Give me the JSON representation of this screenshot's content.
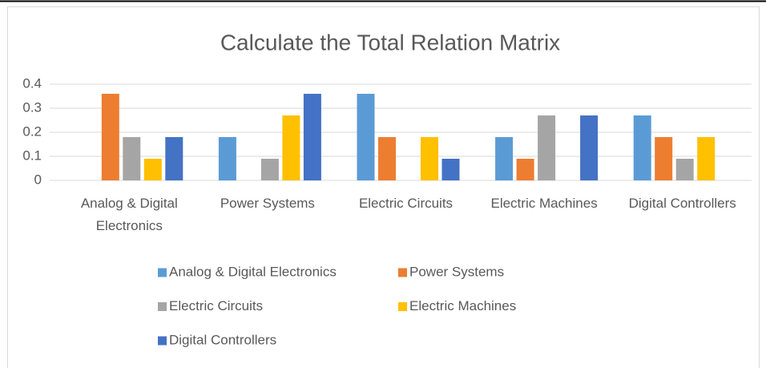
{
  "chart_data": {
    "type": "bar",
    "title": "Calculate the Total Relation Matrix",
    "categories": [
      "Analog & Digital Electronics",
      "Power Systems",
      "Electric Circuits",
      "Electric Machines",
      "Digital Controllers"
    ],
    "series": [
      {
        "name": "Analog & Digital Electronics",
        "color": "#5b9bd5",
        "values": [
          0,
          0.18,
          0.36,
          0.18,
          0.27
        ]
      },
      {
        "name": "Power Systems",
        "color": "#ed7d31",
        "values": [
          0.36,
          0,
          0.18,
          0.09,
          0.18
        ]
      },
      {
        "name": "Electric Circuits",
        "color": "#a5a5a5",
        "values": [
          0.18,
          0.09,
          0,
          0.27,
          0.09
        ]
      },
      {
        "name": "Electric Machines",
        "color": "#ffc000",
        "values": [
          0.09,
          0.27,
          0.18,
          0,
          0.18
        ]
      },
      {
        "name": "Digital Controllers",
        "color": "#4472c4",
        "values": [
          0.18,
          0.36,
          0.09,
          0.27,
          0
        ]
      }
    ],
    "ylim": [
      0,
      0.4
    ],
    "yticks": [
      0,
      0.1,
      0.2,
      0.3,
      0.4
    ],
    "grid": true,
    "legend": "bottom"
  }
}
